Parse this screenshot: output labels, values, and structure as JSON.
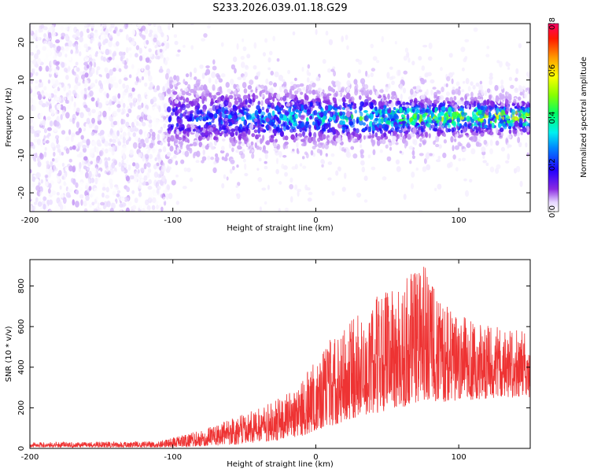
{
  "title": "S233.2026.039.01.18.G29",
  "chart_data": [
    {
      "type": "heatmap",
      "xlabel": "Height of straight line (km)",
      "ylabel": "Frequency (Hz)",
      "xlim": [
        -200,
        150
      ],
      "ylim": [
        -25,
        25
      ],
      "xticks": [
        -200,
        -100,
        0,
        100
      ],
      "xtick_labels": [
        "-200",
        "-100",
        "0",
        "100"
      ],
      "yticks": [
        -20,
        -10,
        0,
        10,
        20
      ],
      "ytick_labels": [
        "-20",
        "-10",
        "0",
        "10",
        "20"
      ],
      "colorbar": {
        "label": "Normalized spectral amplitude",
        "range": [
          0.0,
          0.8
        ],
        "ticks": [
          0.0,
          0.2,
          0.4,
          0.6,
          0.8
        ],
        "tick_labels": [
          "0.0",
          "0.2",
          "0.4",
          "0.6",
          "0.8"
        ],
        "colormap": "rainbow (white-violet-blue-cyan-green-yellow-orange-red-magenta)"
      },
      "regions": [
        {
          "x_range": [
            -200,
            -103
          ],
          "description": "scattered noise across all frequencies",
          "amplitude": [
            0.0,
            0.06
          ]
        },
        {
          "x_range": [
            -103,
            150
          ],
          "description": "energy concentrated near 0 Hz, band narrowing with height",
          "band_center_hz": 0,
          "band_halfwidth_hz": [
            6,
            3
          ],
          "amplitude": [
            0.05,
            0.55
          ]
        }
      ]
    },
    {
      "type": "line",
      "xlabel": "Height of straight line (km)",
      "ylabel": "SNR (10 * v/v)",
      "xlim": [
        -200,
        150
      ],
      "ylim": [
        0,
        930
      ],
      "xticks": [
        -200,
        -100,
        0,
        100
      ],
      "xtick_labels": [
        "-200",
        "-100",
        "0",
        "100"
      ],
      "yticks": [
        0,
        200,
        400,
        600,
        800
      ],
      "ytick_labels": [
        "0",
        "200",
        "400",
        "600",
        "800"
      ],
      "color": "#ee3333",
      "trend": [
        {
          "x": -200,
          "y_low": 5,
          "y_high": 30
        },
        {
          "x": -110,
          "y_low": 5,
          "y_high": 35
        },
        {
          "x": -80,
          "y_low": 10,
          "y_high": 90
        },
        {
          "x": -50,
          "y_low": 20,
          "y_high": 170
        },
        {
          "x": -25,
          "y_low": 40,
          "y_high": 250
        },
        {
          "x": -10,
          "y_low": 60,
          "y_high": 330
        },
        {
          "x": 0,
          "y_low": 90,
          "y_high": 450
        },
        {
          "x": 20,
          "y_low": 130,
          "y_high": 620
        },
        {
          "x": 40,
          "y_low": 170,
          "y_high": 760
        },
        {
          "x": 60,
          "y_low": 200,
          "y_high": 820
        },
        {
          "x": 75,
          "y_low": 220,
          "y_high": 930
        },
        {
          "x": 90,
          "y_low": 230,
          "y_high": 720
        },
        {
          "x": 110,
          "y_low": 240,
          "y_high": 620
        },
        {
          "x": 130,
          "y_low": 250,
          "y_high": 600
        },
        {
          "x": 150,
          "y_low": 250,
          "y_high": 580
        }
      ]
    }
  ]
}
